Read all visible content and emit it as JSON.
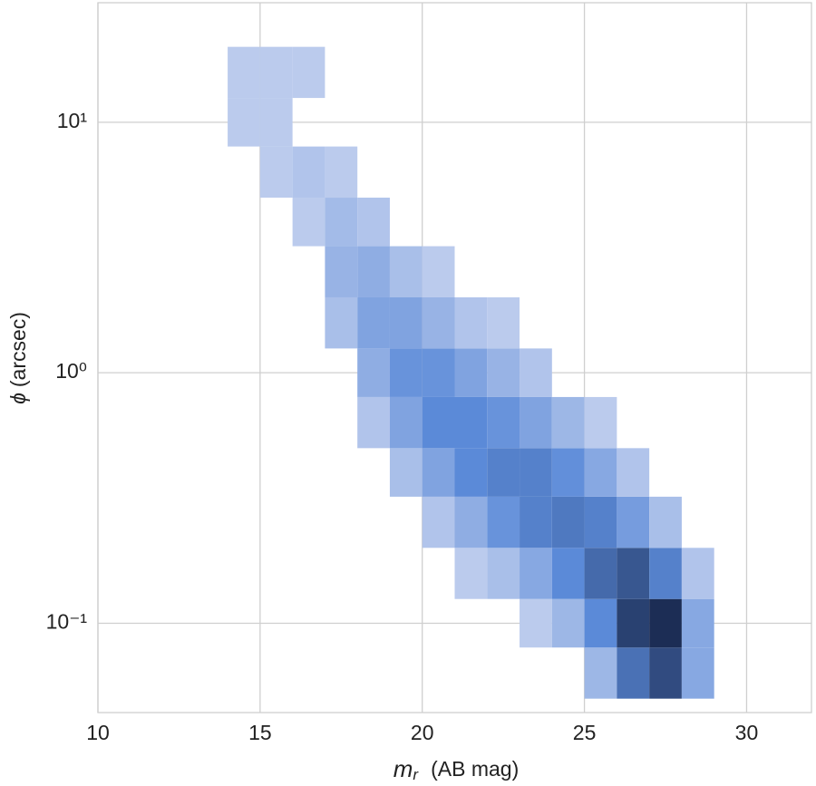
{
  "chart_data": {
    "type": "hist2d",
    "xlabel": {
      "symbol": "m",
      "subscript": "r",
      "unit": "(AB mag)"
    },
    "ylabel": {
      "symbol": "ϕ",
      "unit": "(arcsec)"
    },
    "xlim": [
      10,
      32
    ],
    "ylim": [
      0.044,
      30
    ],
    "yscale": "log",
    "grid": true,
    "xticks": [
      10,
      15,
      20,
      25,
      30
    ],
    "yticks": [
      {
        "value": 0.1,
        "label": "10⁻¹"
      },
      {
        "value": 1,
        "label": "10⁰"
      },
      {
        "value": 10,
        "label": "10¹"
      }
    ],
    "color_low": "#d3dbf2",
    "color_mid": "#5b8ad8",
    "color_high": "#1c2d55",
    "xbins": [
      14,
      15,
      16,
      17,
      18,
      19,
      20,
      21,
      22,
      23,
      24,
      25,
      26,
      27,
      28,
      29
    ],
    "ybins": [
      0.05,
      0.08,
      0.125,
      0.2,
      0.32,
      0.5,
      0.8,
      1.25,
      2,
      3.2,
      5,
      8,
      12.5,
      20
    ],
    "counts": [
      [
        0,
        0,
        0,
        0,
        0,
        0,
        0,
        0,
        0,
        0,
        0,
        5,
        40,
        70,
        10
      ],
      [
        0,
        0,
        0,
        0,
        0,
        0,
        0,
        0,
        0,
        1,
        5,
        25,
        80,
        100,
        10
      ],
      [
        0,
        0,
        0,
        0,
        0,
        0,
        0,
        1,
        3,
        10,
        25,
        45,
        60,
        30,
        2
      ],
      [
        0,
        0,
        0,
        0,
        0,
        0,
        2,
        8,
        20,
        30,
        35,
        30,
        15,
        3,
        0
      ],
      [
        0,
        0,
        0,
        0,
        0,
        3,
        12,
        25,
        30,
        30,
        22,
        10,
        2,
        0,
        0
      ],
      [
        0,
        0,
        0,
        0,
        2,
        12,
        25,
        25,
        20,
        12,
        5,
        1,
        0,
        0,
        0
      ],
      [
        0,
        0,
        0,
        0,
        8,
        20,
        20,
        12,
        6,
        2,
        0,
        0,
        0,
        0,
        0
      ],
      [
        0,
        0,
        0,
        3,
        12,
        12,
        6,
        2,
        1,
        0,
        0,
        0,
        0,
        0,
        0
      ],
      [
        0,
        0,
        0,
        6,
        8,
        3,
        1,
        0,
        0,
        0,
        0,
        0,
        0,
        0,
        0
      ],
      [
        0,
        0,
        1,
        4,
        2,
        0,
        0,
        0,
        0,
        0,
        0,
        0,
        0,
        0,
        0
      ],
      [
        0,
        1,
        2,
        1,
        0,
        0,
        0,
        0,
        0,
        0,
        0,
        0,
        0,
        0,
        0
      ],
      [
        1,
        1,
        0,
        0,
        0,
        0,
        0,
        0,
        0,
        0,
        0,
        0,
        0,
        0,
        0
      ],
      [
        1,
        1,
        1,
        0,
        0,
        0,
        0,
        0,
        0,
        0,
        0,
        0,
        0,
        0,
        0
      ]
    ]
  }
}
